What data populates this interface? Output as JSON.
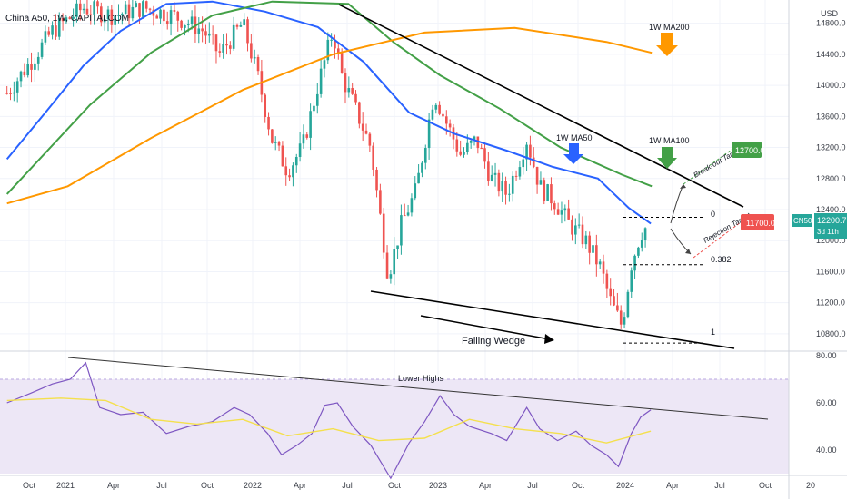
{
  "header": {
    "title": "China A50, 1W, CAPITALCOM"
  },
  "currency": "USD",
  "colors": {
    "up": "#26a69a",
    "down": "#ef5350",
    "ma50": "#2962ff",
    "ma100": "#43a047",
    "ma200": "#ff9800",
    "rsi": "#7e57c2",
    "rsi_ma": "#f4e04d",
    "rsi_band": "#ede7f6",
    "grid": "#f0f3fa",
    "text": "#131722"
  },
  "price_axis": {
    "ticks": [
      "14800.0",
      "14400.0",
      "14000.0",
      "13600.0",
      "13200.0",
      "12800.0",
      "12400.0",
      "12000.0",
      "11600.0",
      "11200.0",
      "10800.0"
    ]
  },
  "rsi_axis": {
    "ticks": [
      "80.00",
      "60.00",
      "40.00"
    ]
  },
  "time_axis": {
    "ticks": [
      "Oct",
      "2021",
      "Apr",
      "Jul",
      "Oct",
      "2022",
      "Apr",
      "Jul",
      "Oct",
      "2023",
      "Apr",
      "Jul",
      "Oct",
      "2024",
      "Apr",
      "Jul",
      "Oct",
      "20"
    ]
  },
  "price_tags": {
    "breakout_value": "12700.0",
    "rejection_value": "11700.0",
    "symbol": "CN50",
    "last_price": "12200.7",
    "countdown": "3d 11h"
  },
  "annotations": {
    "ma200_label": "1W MA200",
    "ma100_label": "1W MA100",
    "ma50_label": "1W MA50",
    "breakout_target": "Break-out Target",
    "rejection_target": "Rejection Target",
    "falling_wedge": "Falling Wedge",
    "lower_highs": "Lower Highs",
    "fib_0": "0",
    "fib_0382": "0.382",
    "fib_1": "1"
  },
  "chart_data": [
    {
      "type": "candlestick",
      "title": "China A50, 1W, CAPITALCOM",
      "y_range": [
        10600,
        15100
      ],
      "x_range": [
        "2020-09",
        "2025-01"
      ],
      "series": [
        {
          "name": "1W MA50",
          "points": [
            [
              "2020-09-15",
              13050
            ],
            [
              "2020-12-01",
              13650
            ],
            [
              "2021-02-15",
              14250
            ],
            [
              "2021-05-01",
              14700
            ],
            [
              "2021-08-01",
              15050
            ],
            [
              "2021-11-01",
              15080
            ],
            [
              "2022-02-15",
              14950
            ],
            [
              "2022-06-01",
              14750
            ],
            [
              "2022-09-01",
              14300
            ],
            [
              "2022-12-01",
              13650
            ],
            [
              "2023-03-01",
              13380
            ],
            [
              "2023-06-15",
              13160
            ],
            [
              "2023-09-15",
              12950
            ],
            [
              "2023-12-15",
              12800
            ],
            [
              "2024-02-15",
              12420
            ],
            [
              "2024-03-30",
              12220
            ]
          ]
        },
        {
          "name": "1W MA100",
          "points": [
            [
              "2020-09-15",
              12600
            ],
            [
              "2021-03-01",
              13750
            ],
            [
              "2021-07-01",
              14420
            ],
            [
              "2021-11-01",
              14900
            ],
            [
              "2022-03-01",
              15080
            ],
            [
              "2022-08-01",
              15050
            ],
            [
              "2022-11-01",
              14550
            ],
            [
              "2023-02-01",
              14130
            ],
            [
              "2023-06-01",
              13700
            ],
            [
              "2023-10-01",
              13200
            ],
            [
              "2024-02-01",
              12850
            ],
            [
              "2024-04-01",
              12700
            ]
          ]
        },
        {
          "name": "1W MA200",
          "points": [
            [
              "2020-09-15",
              12480
            ],
            [
              "2021-01-15",
              12700
            ],
            [
              "2021-07-01",
              13320
            ],
            [
              "2022-01-01",
              13940
            ],
            [
              "2022-07-01",
              14400
            ],
            [
              "2023-01-01",
              14680
            ],
            [
              "2023-07-01",
              14740
            ],
            [
              "2024-01-01",
              14560
            ],
            [
              "2024-04-01",
              14420
            ]
          ]
        }
      ],
      "candles_sampled": [
        [
          "2020-09-15",
          13900
        ],
        [
          "2020-11-01",
          14300
        ],
        [
          "2020-12-15",
          14700
        ],
        [
          "2021-02-15",
          15000
        ],
        [
          "2021-04-15",
          14900
        ],
        [
          "2021-06-15",
          15000
        ],
        [
          "2021-08-15",
          14900
        ],
        [
          "2021-10-15",
          14700
        ],
        [
          "2021-11-15",
          14400
        ],
        [
          "2022-01-01",
          14800
        ],
        [
          "2022-02-01",
          14100
        ],
        [
          "2022-03-01",
          13300
        ],
        [
          "2022-04-01",
          12900
        ],
        [
          "2022-05-01",
          13200
        ],
        [
          "2022-06-01",
          14000
        ],
        [
          "2022-07-01",
          14700
        ],
        [
          "2022-07-20",
          14100
        ],
        [
          "2022-08-15",
          13700
        ],
        [
          "2022-09-15",
          13200
        ],
        [
          "2022-10-20",
          11550
        ],
        [
          "2022-11-15",
          12200
        ],
        [
          "2022-12-15",
          12650
        ],
        [
          "2023-01-20",
          13900
        ],
        [
          "2023-02-15",
          13500
        ],
        [
          "2023-03-15",
          13100
        ],
        [
          "2023-04-15",
          13300
        ],
        [
          "2023-05-15",
          12800
        ],
        [
          "2023-06-15",
          12600
        ],
        [
          "2023-07-25",
          13300
        ],
        [
          "2023-08-20",
          12700
        ],
        [
          "2023-09-20",
          12500
        ],
        [
          "2023-10-20",
          12200
        ],
        [
          "2023-11-20",
          12000
        ],
        [
          "2023-12-20",
          11650
        ],
        [
          "2024-01-10",
          11200
        ],
        [
          "2024-02-01",
          10900
        ],
        [
          "2024-02-20",
          11700
        ],
        [
          "2024-03-10",
          12100
        ],
        [
          "2024-03-25",
          12200
        ]
      ],
      "fibonacci": [
        {
          "level": "0",
          "price": 12300
        },
        {
          "level": "0.382",
          "price": 11690
        },
        {
          "level": "1",
          "price": 10680
        }
      ],
      "targets": [
        {
          "name": "Break-out Target",
          "price": 12700
        },
        {
          "name": "Rejection Target",
          "price": 11700
        }
      ]
    },
    {
      "type": "line",
      "title": "RSI",
      "y_range": [
        30,
        80
      ],
      "overbought_band": [
        30,
        70
      ],
      "series": [
        {
          "name": "RSI",
          "points": [
            [
              "2020-09-15",
              60
            ],
            [
              "2020-11-01",
              64
            ],
            [
              "2020-12-15",
              68
            ],
            [
              "2021-01-20",
              70
            ],
            [
              "2021-02-20",
              77
            ],
            [
              "2021-03-20",
              58
            ],
            [
              "2021-05-01",
              55
            ],
            [
              "2021-06-15",
              56
            ],
            [
              "2021-08-01",
              47
            ],
            [
              "2021-09-15",
              50
            ],
            [
              "2021-11-01",
              52
            ],
            [
              "2021-12-15",
              58
            ],
            [
              "2022-01-15",
              55
            ],
            [
              "2022-02-20",
              47
            ],
            [
              "2022-03-20",
              38
            ],
            [
              "2022-04-20",
              42
            ],
            [
              "2022-05-20",
              47
            ],
            [
              "2022-06-15",
              59
            ],
            [
              "2022-07-10",
              60
            ],
            [
              "2022-08-10",
              50
            ],
            [
              "2022-09-15",
              42
            ],
            [
              "2022-10-25",
              28
            ],
            [
              "2022-12-01",
              43
            ],
            [
              "2023-01-01",
              52
            ],
            [
              "2023-02-01",
              63
            ],
            [
              "2023-03-01",
              55
            ],
            [
              "2023-04-01",
              50
            ],
            [
              "2023-05-15",
              47
            ],
            [
              "2023-06-15",
              44
            ],
            [
              "2023-07-25",
              58
            ],
            [
              "2023-08-20",
              49
            ],
            [
              "2023-09-25",
              44
            ],
            [
              "2023-11-01",
              48
            ],
            [
              "2023-12-01",
              42
            ],
            [
              "2024-01-01",
              38
            ],
            [
              "2024-01-25",
              33
            ],
            [
              "2024-02-20",
              47
            ],
            [
              "2024-03-10",
              54
            ],
            [
              "2024-03-30",
              57
            ]
          ]
        },
        {
          "name": "RSI MA",
          "points": [
            [
              "2020-09-15",
              61
            ],
            [
              "2021-01-01",
              62
            ],
            [
              "2021-04-01",
              61
            ],
            [
              "2021-07-01",
              53
            ],
            [
              "2021-10-01",
              51
            ],
            [
              "2022-01-01",
              53
            ],
            [
              "2022-04-01",
              46
            ],
            [
              "2022-07-01",
              49
            ],
            [
              "2022-10-01",
              44
            ],
            [
              "2023-01-01",
              45
            ],
            [
              "2023-04-01",
              53
            ],
            [
              "2023-07-01",
              49
            ],
            [
              "2023-10-01",
              47
            ],
            [
              "2024-01-01",
              43
            ],
            [
              "2024-03-30",
              48
            ]
          ]
        }
      ],
      "trendline_label": "Lower Highs"
    }
  ]
}
